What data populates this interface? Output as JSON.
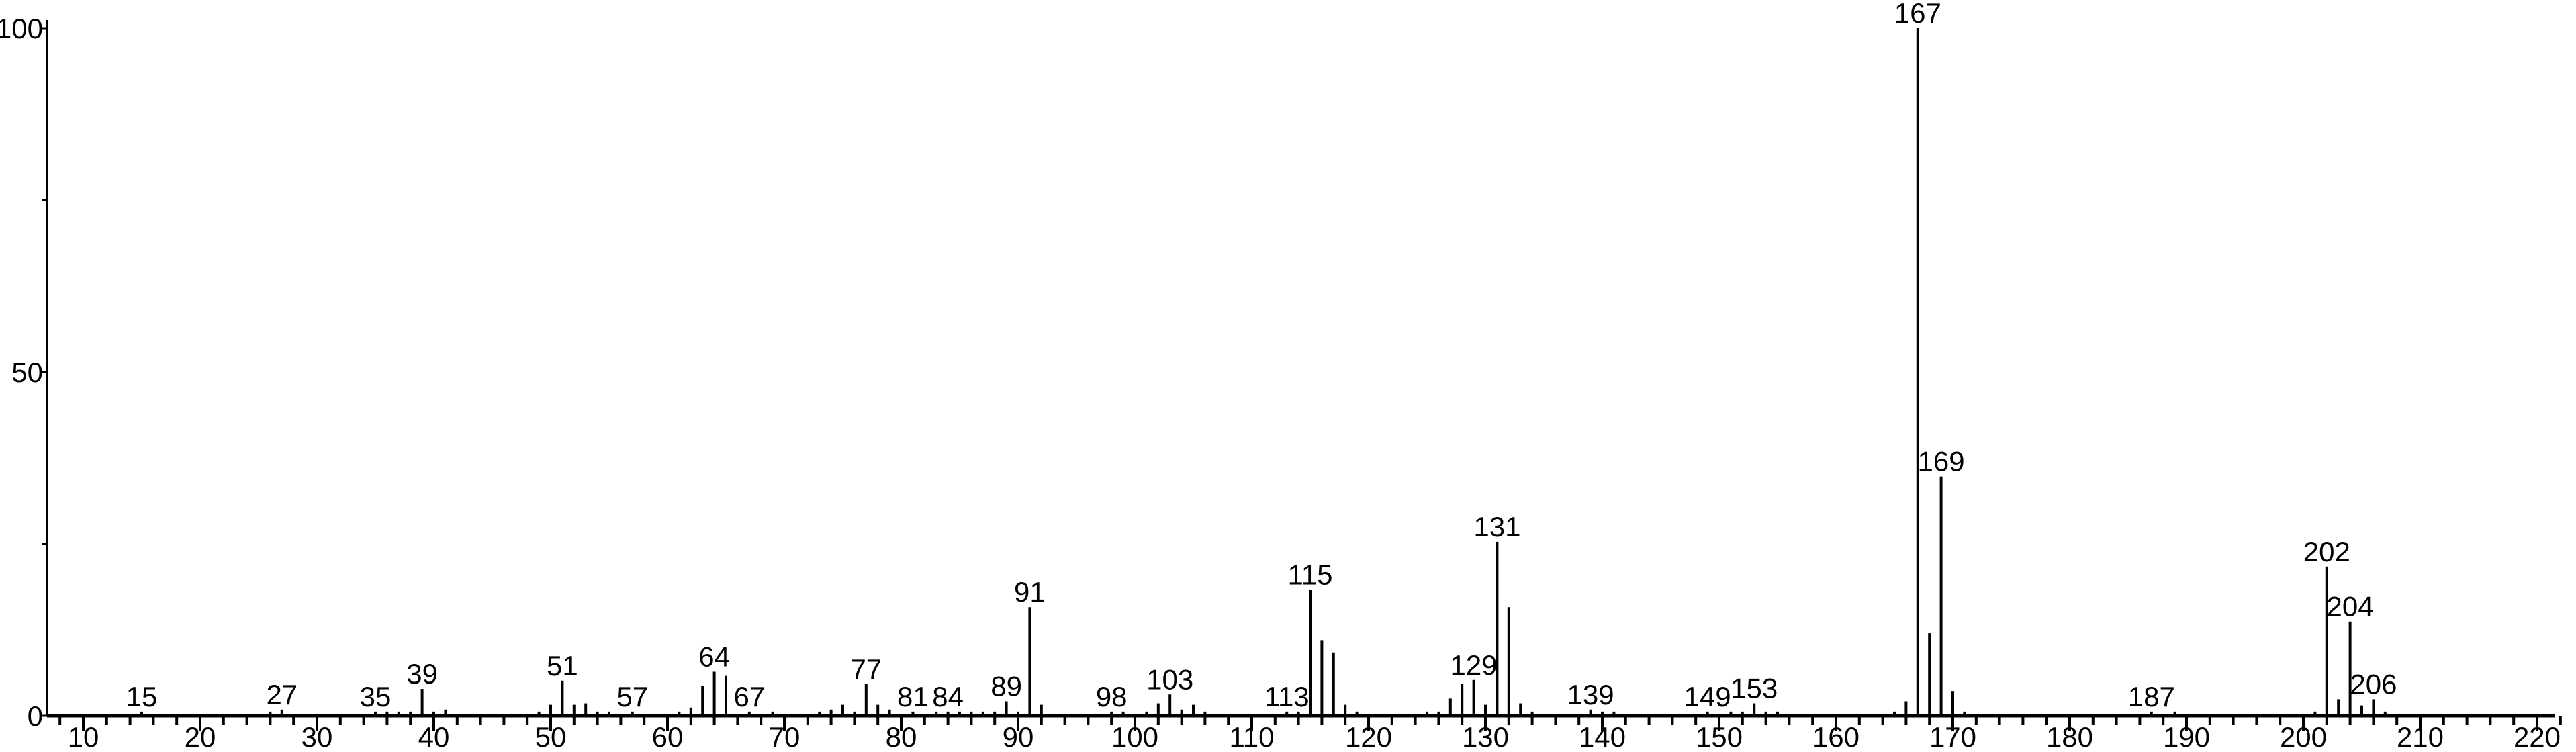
{
  "chart_data": {
    "type": "bar",
    "title": "",
    "xlabel": "",
    "ylabel": "",
    "xlim": [
      7,
      223
    ],
    "ylim": [
      0,
      100
    ],
    "x_ticks": [
      10,
      20,
      30,
      40,
      50,
      60,
      70,
      80,
      90,
      100,
      110,
      120,
      130,
      140,
      150,
      160,
      170,
      180,
      190,
      200,
      210,
      220
    ],
    "y_ticks": [
      0,
      50,
      100
    ],
    "grid": false,
    "bar_color": "#000000",
    "peaks": [
      {
        "x": 15,
        "y": 0.6
      },
      {
        "x": 26,
        "y": 0.6
      },
      {
        "x": 27,
        "y": 0.9
      },
      {
        "x": 35,
        "y": 0.6
      },
      {
        "x": 36,
        "y": 0.6
      },
      {
        "x": 37,
        "y": 0.6
      },
      {
        "x": 38,
        "y": 0.6
      },
      {
        "x": 39,
        "y": 3.9
      },
      {
        "x": 40,
        "y": 0.6
      },
      {
        "x": 41,
        "y": 0.9
      },
      {
        "x": 49,
        "y": 0.6
      },
      {
        "x": 50,
        "y": 1.6
      },
      {
        "x": 51,
        "y": 5.1
      },
      {
        "x": 52,
        "y": 1.6
      },
      {
        "x": 53,
        "y": 1.8
      },
      {
        "x": 54,
        "y": 0.6
      },
      {
        "x": 55,
        "y": 0.6
      },
      {
        "x": 57,
        "y": 0.6
      },
      {
        "x": 61,
        "y": 0.6
      },
      {
        "x": 62,
        "y": 1.2
      },
      {
        "x": 63,
        "y": 4.3
      },
      {
        "x": 64,
        "y": 6.4
      },
      {
        "x": 65,
        "y": 5.8
      },
      {
        "x": 67,
        "y": 0.6
      },
      {
        "x": 69,
        "y": 0.6
      },
      {
        "x": 73,
        "y": 0.6
      },
      {
        "x": 74,
        "y": 0.9
      },
      {
        "x": 75,
        "y": 1.6
      },
      {
        "x": 76,
        "y": 0.6
      },
      {
        "x": 77,
        "y": 4.6
      },
      {
        "x": 78,
        "y": 1.6
      },
      {
        "x": 79,
        "y": 0.9
      },
      {
        "x": 81,
        "y": 0.6
      },
      {
        "x": 83,
        "y": 0.6
      },
      {
        "x": 84,
        "y": 0.6
      },
      {
        "x": 85,
        "y": 0.6
      },
      {
        "x": 86,
        "y": 0.6
      },
      {
        "x": 87,
        "y": 0.6
      },
      {
        "x": 88,
        "y": 0.6
      },
      {
        "x": 89,
        "y": 2.1
      },
      {
        "x": 90,
        "y": 0.6
      },
      {
        "x": 91,
        "y": 15.8
      },
      {
        "x": 92,
        "y": 1.6
      },
      {
        "x": 98,
        "y": 0.6
      },
      {
        "x": 99,
        "y": 0.6
      },
      {
        "x": 101,
        "y": 0.6
      },
      {
        "x": 102,
        "y": 1.8
      },
      {
        "x": 103,
        "y": 3.1
      },
      {
        "x": 104,
        "y": 0.9
      },
      {
        "x": 105,
        "y": 1.6
      },
      {
        "x": 106,
        "y": 0.6
      },
      {
        "x": 113,
        "y": 0.6
      },
      {
        "x": 114,
        "y": 0.6
      },
      {
        "x": 115,
        "y": 18.3
      },
      {
        "x": 116,
        "y": 11.0
      },
      {
        "x": 117,
        "y": 9.2
      },
      {
        "x": 118,
        "y": 1.6
      },
      {
        "x": 119,
        "y": 0.6
      },
      {
        "x": 125,
        "y": 0.6
      },
      {
        "x": 126,
        "y": 0.6
      },
      {
        "x": 127,
        "y": 2.5
      },
      {
        "x": 128,
        "y": 4.6
      },
      {
        "x": 129,
        "y": 5.2
      },
      {
        "x": 130,
        "y": 1.6
      },
      {
        "x": 131,
        "y": 25.3
      },
      {
        "x": 132,
        "y": 15.8
      },
      {
        "x": 133,
        "y": 1.8
      },
      {
        "x": 134,
        "y": 0.6
      },
      {
        "x": 139,
        "y": 0.9
      },
      {
        "x": 140,
        "y": 0.6
      },
      {
        "x": 141,
        "y": 0.6
      },
      {
        "x": 149,
        "y": 0.6
      },
      {
        "x": 151,
        "y": 0.6
      },
      {
        "x": 152,
        "y": 0.6
      },
      {
        "x": 153,
        "y": 1.8
      },
      {
        "x": 154,
        "y": 0.6
      },
      {
        "x": 155,
        "y": 0.6
      },
      {
        "x": 165,
        "y": 0.6
      },
      {
        "x": 166,
        "y": 2.1
      },
      {
        "x": 167,
        "y": 100
      },
      {
        "x": 168,
        "y": 12.0
      },
      {
        "x": 169,
        "y": 34.8
      },
      {
        "x": 170,
        "y": 3.6
      },
      {
        "x": 171,
        "y": 0.6
      },
      {
        "x": 187,
        "y": 0.6
      },
      {
        "x": 189,
        "y": 0.6
      },
      {
        "x": 201,
        "y": 0.6
      },
      {
        "x": 202,
        "y": 21.7
      },
      {
        "x": 203,
        "y": 2.4
      },
      {
        "x": 204,
        "y": 13.7
      },
      {
        "x": 205,
        "y": 1.5
      },
      {
        "x": 206,
        "y": 2.4
      },
      {
        "x": 207,
        "y": 0.6
      }
    ],
    "peak_labels": [
      "15",
      "27",
      "35",
      "39",
      "51",
      "57",
      "64",
      "67",
      "77",
      "81",
      "84",
      "89",
      "91",
      "98",
      "103",
      "113",
      "115",
      "129",
      "131",
      "139",
      "149",
      "153",
      "167",
      "169",
      "187",
      "202",
      "204",
      "206"
    ]
  }
}
